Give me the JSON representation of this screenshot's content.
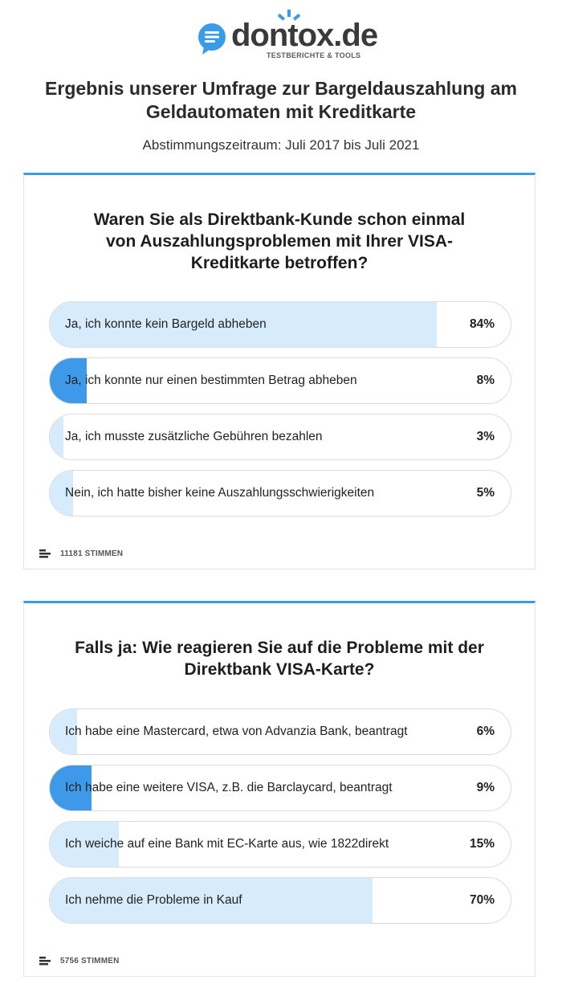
{
  "brand": {
    "name": "dontox.de",
    "tagline": "TESTBERICHTE & TOOLS",
    "colors": {
      "accent": "#3a9be8",
      "text": "#3a3a3a",
      "fill": "#d6ebfb",
      "fill_selected": "#3e9ae8"
    }
  },
  "page": {
    "title": "Ergebnis unserer Umfrage zur Bargeldauszahlung am Geldautomaten mit Kreditkarte",
    "subtitle": "Abstimmungszeitraum: Juli 2017 bis Juli 2021"
  },
  "polls": [
    {
      "question": "Waren Sie als Direktbank-Kunde schon einmal von Auszahlungsproblemen mit Ihrer VISA-Kreditkarte betroffen?",
      "options": [
        {
          "label": "Ja, ich konnte kein Bargeld abheben",
          "percent": 84,
          "percent_label": "84%",
          "selected": false
        },
        {
          "label": "Ja, ich konnte nur einen bestimmten Betrag abheben",
          "percent": 8,
          "percent_label": "8%",
          "selected": true
        },
        {
          "label": "Ja, ich musste zusätzliche Gebühren bezahlen",
          "percent": 3,
          "percent_label": "3%",
          "selected": false
        },
        {
          "label": "Nein, ich hatte bisher keine Auszahlungsschwierigkeiten",
          "percent": 5,
          "percent_label": "5%",
          "selected": false
        }
      ],
      "votes_label": "11181 STIMMEN"
    },
    {
      "question": "Falls ja: Wie reagieren Sie auf die Probleme mit der Direktbank VISA-Karte?",
      "options": [
        {
          "label": "Ich habe eine Mastercard, etwa von Advanzia Bank, beantragt",
          "percent": 6,
          "percent_label": "6%",
          "selected": false
        },
        {
          "label": "Ich habe eine weitere VISA, z.B. die Barclaycard, beantragt",
          "percent": 9,
          "percent_label": "9%",
          "selected": true
        },
        {
          "label": "Ich weiche auf eine Bank mit EC-Karte aus, wie 1822direkt",
          "percent": 15,
          "percent_label": "15%",
          "selected": false
        },
        {
          "label": "Ich nehme die Probleme in Kauf",
          "percent": 70,
          "percent_label": "70%",
          "selected": false
        }
      ],
      "votes_label": "5756 STIMMEN"
    }
  ],
  "icons": {
    "logo": "speech-bubble-icon",
    "votes": "bar-chart-icon"
  }
}
